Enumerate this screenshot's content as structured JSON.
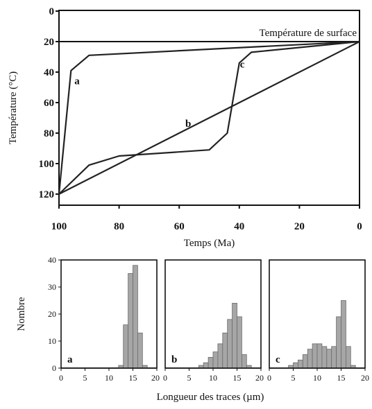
{
  "chart_data": [
    {
      "type": "line",
      "xlabel": "Temps (Ma)",
      "ylabel": "Température (°C)",
      "xlim": [
        100,
        0
      ],
      "ylim": [
        0,
        130
      ],
      "y_inverted": true,
      "x_ticks": [
        100,
        80,
        60,
        40,
        20,
        0
      ],
      "y_ticks": [
        0,
        20,
        40,
        60,
        80,
        100,
        120
      ],
      "reference_line": {
        "y": 20,
        "label": "Température de surface"
      },
      "series": [
        {
          "name": "a",
          "points": [
            [
              100,
              120
            ],
            [
              96,
              39
            ],
            [
              90,
              29
            ],
            [
              0,
              20
            ]
          ]
        },
        {
          "name": "b",
          "points": [
            [
              100,
              120
            ],
            [
              0,
              20
            ]
          ]
        },
        {
          "name": "c",
          "points": [
            [
              100,
              120
            ],
            [
              90,
              101
            ],
            [
              80,
              95
            ],
            [
              50,
              91
            ],
            [
              44,
              80
            ],
            [
              40,
              34
            ],
            [
              36,
              27
            ],
            [
              0,
              20
            ]
          ]
        }
      ],
      "annotations": [
        {
          "text": "a",
          "x": 94,
          "y": 48
        },
        {
          "text": "b",
          "x": 57,
          "y": 76
        },
        {
          "text": "c",
          "x": 39,
          "y": 37
        }
      ]
    },
    {
      "type": "bar",
      "panels": [
        "a",
        "b",
        "c"
      ],
      "xlabel": "Longueur des traces (µm)",
      "ylabel": "Nombre",
      "xlim": [
        0,
        20
      ],
      "ylim": [
        0,
        40
      ],
      "x_ticks": [
        0,
        5,
        10,
        15,
        20
      ],
      "y_ticks": [
        0,
        10,
        20,
        30,
        40
      ],
      "bin_width": 1,
      "histograms": [
        {
          "name": "a",
          "bin_starts": [
            12,
            13,
            14,
            15,
            16,
            17
          ],
          "counts": [
            1,
            16,
            35,
            38,
            13,
            1
          ]
        },
        {
          "name": "b",
          "bin_starts": [
            7,
            8,
            9,
            10,
            11,
            12,
            13,
            14,
            15,
            16,
            17
          ],
          "counts": [
            1,
            2,
            4,
            6,
            9,
            13,
            18,
            24,
            19,
            5,
            1
          ]
        },
        {
          "name": "c",
          "bin_starts": [
            4,
            5,
            6,
            7,
            8,
            9,
            10,
            11,
            12,
            13,
            14,
            15,
            16,
            17
          ],
          "counts": [
            1,
            2,
            3,
            5,
            7,
            9,
            9,
            8,
            7,
            8,
            19,
            25,
            8,
            1
          ]
        }
      ]
    }
  ]
}
